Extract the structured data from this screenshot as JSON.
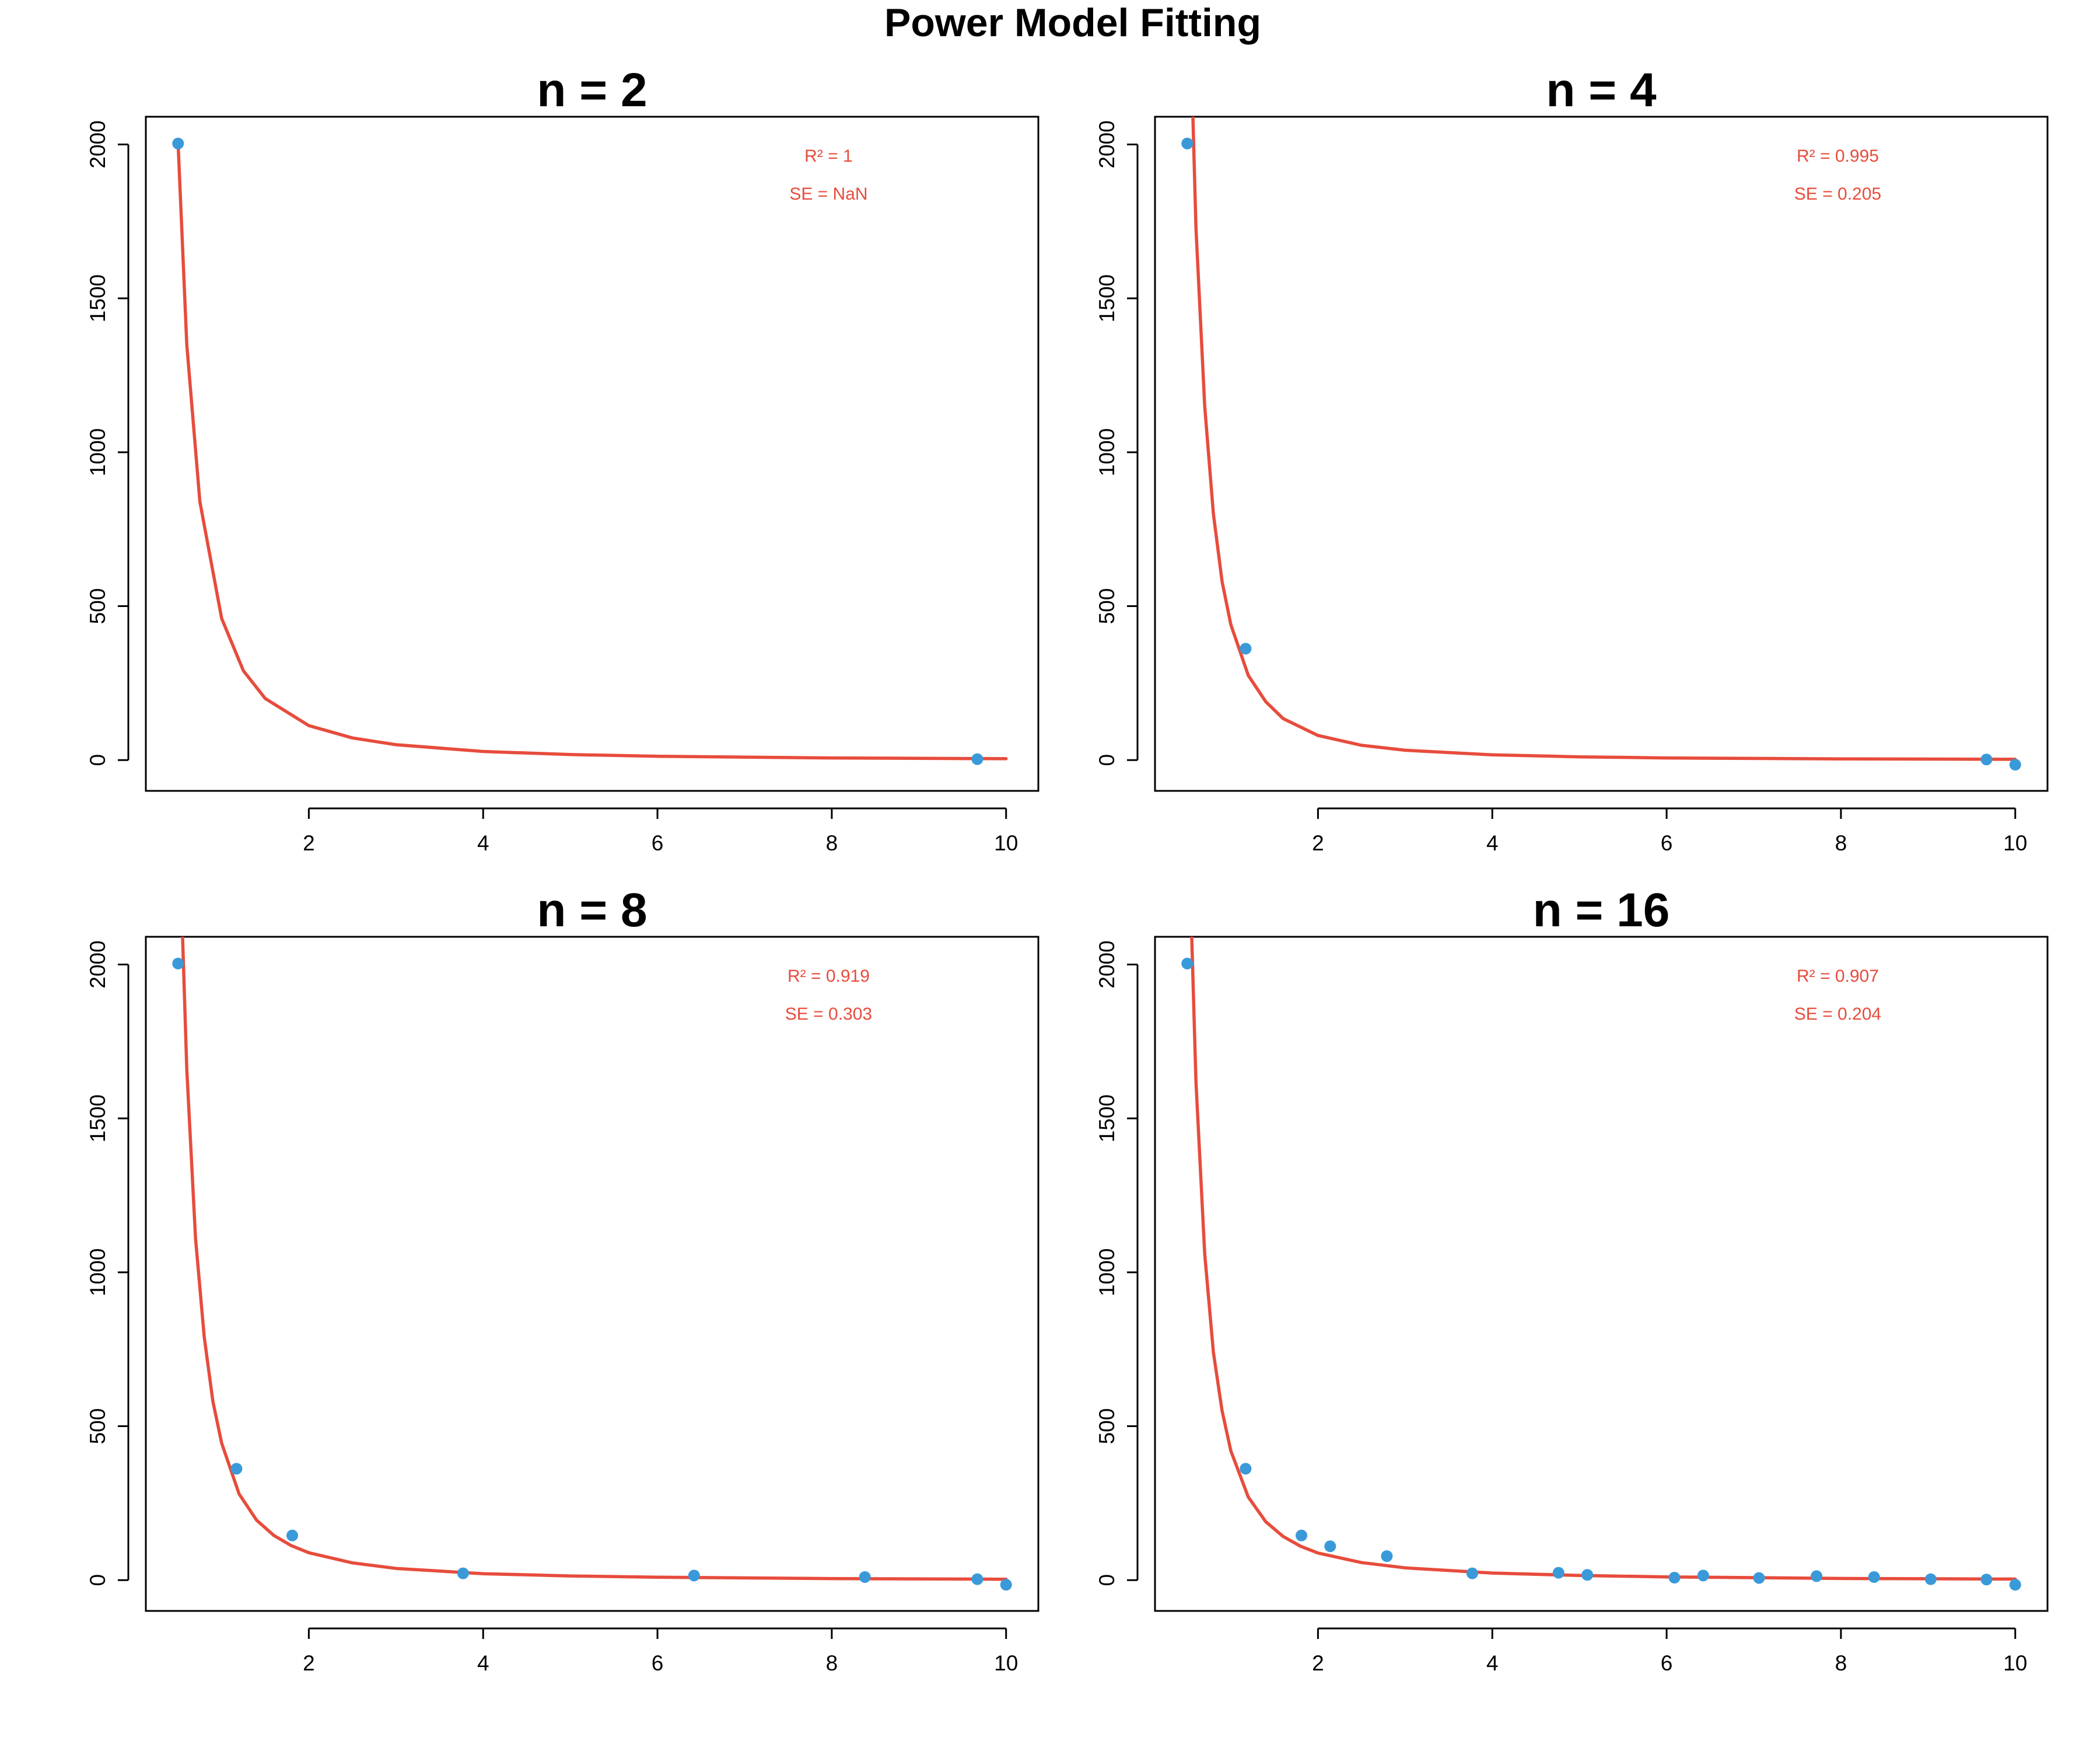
{
  "title": "Power Model Fitting",
  "colors": {
    "points": "#3a9ad9",
    "fit": "#e74c3c",
    "text": "#000000"
  },
  "chart_data": [
    {
      "type": "scatter",
      "title": "n = 2",
      "xlabel": "",
      "ylabel": "",
      "xlim": [
        0.13,
        10.37
      ],
      "ylim": [
        -100,
        2090
      ],
      "xticks": [
        2,
        4,
        6,
        8,
        10
      ],
      "yticks": [
        0,
        500,
        1000,
        1500,
        2000
      ],
      "grid": false,
      "series": [
        {
          "type": "scatter",
          "x": [
            0.5,
            9.67
          ],
          "y": [
            2003,
            3
          ]
        },
        {
          "type": "line",
          "x": [
            0.5,
            0.6,
            0.75,
            1.0,
            1.25,
            1.5,
            2.0,
            2.5,
            3.0,
            4.0,
            5.0,
            6.0,
            8.0,
            10.0
          ],
          "y": [
            2003,
            1350,
            840,
            460,
            290,
            200,
            112,
            72,
            50,
            28,
            18,
            12.5,
            7,
            4.5
          ]
        }
      ],
      "annotations": [
        "R² = 1",
        "SE = NaN"
      ]
    },
    {
      "type": "scatter",
      "title": "n = 4",
      "xlabel": "",
      "ylabel": "",
      "xlim": [
        0.13,
        10.37
      ],
      "ylim": [
        -100,
        2090
      ],
      "xticks": [
        2,
        4,
        6,
        8,
        10
      ],
      "yticks": [
        0,
        500,
        1000,
        1500,
        2000
      ],
      "grid": false,
      "series": [
        {
          "type": "scatter",
          "x": [
            0.5,
            1.17,
            9.67,
            10.0
          ],
          "y": [
            2003,
            362,
            2,
            -15
          ]
        },
        {
          "type": "line",
          "x": [
            0.55,
            0.6,
            0.7,
            0.8,
            0.9,
            1.0,
            1.2,
            1.4,
            1.6,
            2.0,
            2.5,
            3.0,
            4.0,
            5.0,
            6.0,
            8.0,
            10.0
          ],
          "y": [
            2240,
            1730,
            1150,
            800,
            580,
            440,
            275,
            190,
            135,
            80,
            48,
            32,
            17,
            10.5,
            7,
            4,
            2.5
          ]
        }
      ],
      "annotations": [
        "R² = 0.995",
        "SE = 0.205"
      ]
    },
    {
      "type": "scatter",
      "title": "n = 8",
      "xlabel": "",
      "ylabel": "",
      "xlim": [
        0.13,
        10.37
      ],
      "ylim": [
        -100,
        2090
      ],
      "xticks": [
        2,
        4,
        6,
        8,
        10
      ],
      "yticks": [
        0,
        500,
        1000,
        1500,
        2000
      ],
      "grid": false,
      "series": [
        {
          "type": "scatter",
          "x": [
            0.5,
            1.17,
            1.81,
            3.77,
            6.42,
            8.38,
            9.67,
            10.0
          ],
          "y": [
            2003,
            362,
            145,
            22,
            15,
            10,
            3,
            -15
          ]
        },
        {
          "type": "line",
          "x": [
            0.55,
            0.6,
            0.7,
            0.8,
            0.9,
            1.0,
            1.2,
            1.4,
            1.6,
            1.8,
            2.0,
            2.5,
            3.0,
            4.0,
            5.0,
            6.0,
            8.0,
            10.0
          ],
          "y": [
            2100,
            1660,
            1110,
            790,
            580,
            445,
            280,
            195,
            145,
            112,
            89,
            56,
            38,
            21,
            13.5,
            9.5,
            5,
            3
          ]
        }
      ],
      "annotations": [
        "R² = 0.919",
        "SE = 0.303"
      ]
    },
    {
      "type": "scatter",
      "title": "n = 16",
      "xlabel": "",
      "ylabel": "",
      "xlim": [
        0.13,
        10.37
      ],
      "ylim": [
        -100,
        2090
      ],
      "xticks": [
        2,
        4,
        6,
        8,
        10
      ],
      "yticks": [
        0,
        500,
        1000,
        1500,
        2000
      ],
      "grid": false,
      "series": [
        {
          "type": "scatter",
          "x": [
            0.5,
            1.17,
            1.81,
            2.14,
            2.79,
            3.77,
            4.76,
            5.09,
            6.09,
            6.42,
            7.06,
            7.72,
            8.38,
            9.03,
            9.67,
            10.0
          ],
          "y": [
            2003,
            362,
            145,
            110,
            78,
            22,
            24,
            17,
            8,
            15,
            7,
            13,
            10,
            3,
            2,
            -15
          ]
        },
        {
          "type": "line",
          "x": [
            0.55,
            0.6,
            0.7,
            0.8,
            0.9,
            1.0,
            1.2,
            1.4,
            1.6,
            1.8,
            2.0,
            2.5,
            3.0,
            4.0,
            5.0,
            6.0,
            8.0,
            10.0
          ],
          "y": [
            2100,
            1620,
            1060,
            740,
            550,
            420,
            270,
            190,
            142,
            110,
            88,
            57,
            40,
            23,
            15,
            10.5,
            5.5,
            3.5
          ]
        }
      ],
      "annotations": [
        "R² = 0.907",
        "SE = 0.204"
      ]
    }
  ]
}
